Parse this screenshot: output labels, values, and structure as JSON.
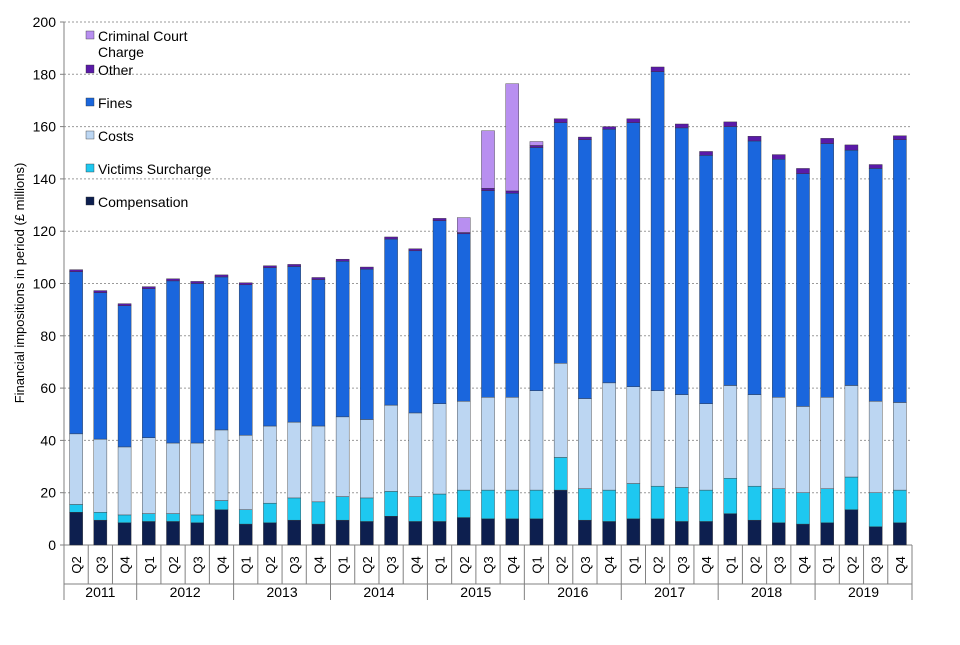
{
  "chart_data": {
    "type": "bar",
    "stacked": true,
    "title": "",
    "ylabel": "Financial impositions in period (£ millions)",
    "xlabel": "",
    "ylim": [
      0,
      200
    ],
    "yticks": [
      0,
      20,
      40,
      60,
      80,
      100,
      120,
      140,
      160,
      180,
      200
    ],
    "grid": true,
    "legend_position": "top-left",
    "categories": [
      "Q2",
      "Q3",
      "Q4",
      "Q1",
      "Q2",
      "Q3",
      "Q4",
      "Q1",
      "Q2",
      "Q3",
      "Q4",
      "Q1",
      "Q2",
      "Q3",
      "Q4",
      "Q1",
      "Q2",
      "Q3",
      "Q4",
      "Q1",
      "Q2",
      "Q3",
      "Q4",
      "Q1",
      "Q2",
      "Q3",
      "Q4",
      "Q1",
      "Q2",
      "Q3",
      "Q4",
      "Q1",
      "Q2",
      "Q3",
      "Q4"
    ],
    "year_groups": [
      {
        "year": "2011",
        "count": 3
      },
      {
        "year": "2012",
        "count": 4
      },
      {
        "year": "2013",
        "count": 4
      },
      {
        "year": "2014",
        "count": 4
      },
      {
        "year": "2015",
        "count": 4
      },
      {
        "year": "2016",
        "count": 4
      },
      {
        "year": "2017",
        "count": 4
      },
      {
        "year": "2018",
        "count": 4
      },
      {
        "year": "2019",
        "count": 4
      }
    ],
    "series": [
      {
        "name": "Compensation",
        "color": "#0d1f4f",
        "values": [
          12.5,
          9.5,
          8.5,
          9,
          9,
          8.5,
          13.5,
          8,
          8.5,
          9.5,
          8,
          9.5,
          9,
          11,
          9,
          9,
          10.5,
          10,
          10,
          10,
          21,
          9.5,
          9,
          10,
          10,
          9,
          9,
          12,
          9.5,
          8.5,
          8,
          8.5,
          13.5,
          7,
          8.5
        ]
      },
      {
        "name": "Victims Surcharge",
        "color": "#1ec8f0",
        "values": [
          3,
          3,
          3,
          3,
          3,
          3,
          3.5,
          5.5,
          7.5,
          8.5,
          8.5,
          9,
          9,
          9.5,
          9.5,
          10.5,
          10.5,
          11,
          11,
          11,
          12.5,
          12,
          12,
          13.5,
          12.5,
          13,
          12,
          13.5,
          13,
          13,
          12,
          13,
          12.5,
          13,
          12.5
        ]
      },
      {
        "name": "Costs",
        "color": "#bcd6f2",
        "values": [
          27,
          28,
          26,
          29,
          27,
          27.5,
          27,
          28.5,
          29.5,
          29,
          29,
          30.5,
          30,
          33,
          32,
          34.5,
          34,
          35.5,
          35.5,
          38,
          36,
          34.5,
          41,
          37,
          36.5,
          35.5,
          33,
          35.5,
          35,
          35,
          33,
          35,
          35,
          35,
          33.5
        ]
      },
      {
        "name": "Fines",
        "color": "#1a66dd",
        "values": [
          62,
          56,
          54,
          57,
          62,
          61,
          58.5,
          57.5,
          60.5,
          59.5,
          56,
          59.5,
          57.5,
          63.5,
          62,
          70,
          64,
          79,
          78,
          93,
          92,
          99,
          97,
          101,
          122,
          102,
          95,
          99,
          97,
          91,
          89,
          97,
          90,
          89,
          100.5
        ]
      },
      {
        "name": "Other",
        "color": "#5a1aa8",
        "values": [
          0.8,
          0.8,
          0.8,
          0.8,
          0.8,
          0.8,
          0.8,
          0.8,
          0.8,
          0.8,
          0.8,
          0.8,
          0.8,
          0.8,
          0.8,
          0.9,
          0.5,
          0.9,
          0.9,
          0.8,
          1.5,
          1,
          1,
          1.5,
          1.8,
          1.5,
          1.5,
          1.8,
          1.8,
          1.8,
          2,
          2,
          2,
          1.5,
          1.5
        ]
      },
      {
        "name": "Criminal Court Charge",
        "color": "#b88ff0",
        "values": [
          0,
          0,
          0,
          0,
          0,
          0,
          0,
          0,
          0,
          0,
          0,
          0,
          0,
          0,
          0,
          0,
          5.7,
          22,
          41,
          1.5,
          0,
          0,
          0,
          0,
          0,
          0,
          0,
          0,
          0,
          0,
          0,
          0,
          0,
          0,
          0
        ]
      }
    ]
  }
}
